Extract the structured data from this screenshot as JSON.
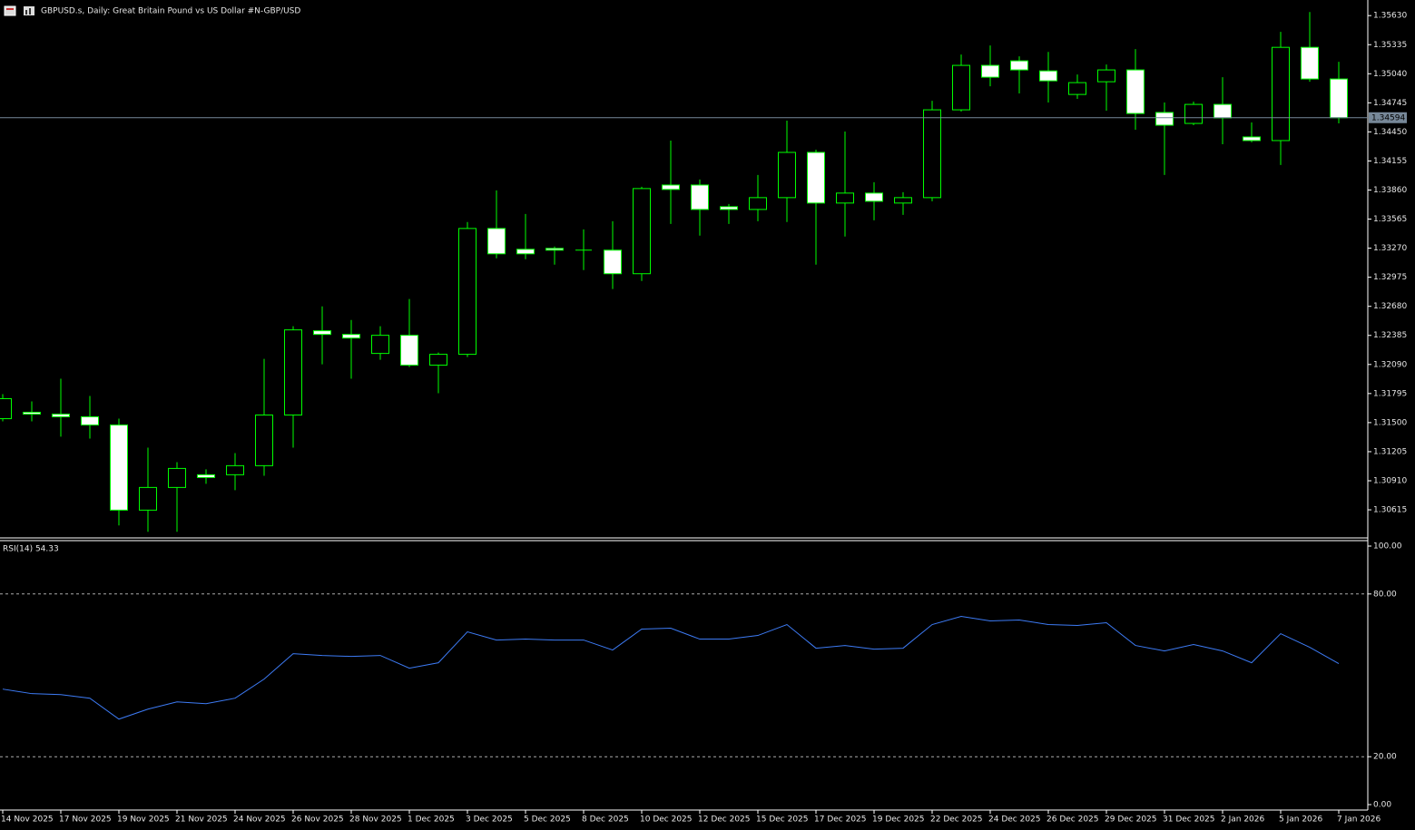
{
  "chart_data": [
    {
      "type": "candlestick",
      "title": "GBPUSD.s, Daily:  Great Britain Pound vs US Dollar #N-GBP/USD",
      "categories": [
        "14 Nov 2025",
        null,
        "17 Nov 2025",
        null,
        "19 Nov 2025",
        null,
        "21 Nov 2025",
        null,
        "24 Nov 2025",
        null,
        "26 Nov 2025",
        null,
        "28 Nov 2025",
        null,
        "1 Dec 2025",
        null,
        "3 Dec 2025",
        null,
        "5 Dec 2025",
        null,
        "8 Dec 2025",
        null,
        "10 Dec 2025",
        null,
        "12 Dec 2025",
        null,
        "15 Dec 2025",
        null,
        "17 Dec 2025",
        null,
        "19 Dec 2025",
        null,
        "22 Dec 2025",
        null,
        "24 Dec 2025",
        null,
        "26 Dec 2025",
        null,
        "29 Dec 2025",
        null,
        "31 Dec 2025",
        null,
        "2 Jan 2026",
        null,
        "5 Jan 2026",
        null,
        "7 Jan 2026"
      ],
      "open": [
        1.3154,
        1.31605,
        1.31586,
        1.31559,
        1.31476,
        1.30612,
        1.30842,
        1.30971,
        1.30971,
        1.31063,
        1.31577,
        1.32432,
        1.32395,
        1.32202,
        1.32386,
        1.32083,
        1.32193,
        1.3347,
        1.33259,
        1.33268,
        1.3325,
        1.3325,
        1.33011,
        1.33911,
        1.33911,
        1.33691,
        1.33663,
        1.33783,
        1.34242,
        1.33728,
        1.33829,
        1.33728,
        1.33783,
        1.34674,
        1.35125,
        1.35171,
        1.35069,
        1.3483,
        1.34959,
        1.35079,
        1.34647,
        1.34536,
        1.34729,
        1.34399,
        1.34362,
        1.35308,
        1.34987
      ],
      "high": [
        1.31789,
        1.31715,
        1.31945,
        1.3177,
        1.3154,
        1.31246,
        1.31099,
        1.31026,
        1.31191,
        1.32147,
        1.32478,
        1.3268,
        1.32542,
        1.32478,
        1.32754,
        1.32211,
        1.33535,
        1.33856,
        1.33617,
        1.33287,
        1.33461,
        1.33544,
        1.33893,
        1.34362,
        1.33967,
        1.33718,
        1.34013,
        1.34564,
        1.3427,
        1.34454,
        1.33939,
        1.33838,
        1.34766,
        1.35235,
        1.35327,
        1.35216,
        1.35262,
        1.35033,
        1.35134,
        1.3529,
        1.34748,
        1.34757,
        1.35005,
        1.34546,
        1.35465,
        1.35667,
        1.35161
      ],
      "low": [
        1.31513,
        1.31513,
        1.31357,
        1.31338,
        1.30456,
        1.30392,
        1.30392,
        1.30879,
        1.30814,
        1.30961,
        1.31246,
        1.32092,
        1.31945,
        1.32138,
        1.32064,
        1.31798,
        1.32165,
        1.33167,
        1.33158,
        1.33103,
        1.33048,
        1.32855,
        1.32937,
        1.33516,
        1.33397,
        1.33516,
        1.33544,
        1.33535,
        1.33103,
        1.33388,
        1.33553,
        1.33608,
        1.33746,
        1.34656,
        1.34913,
        1.3484,
        1.34748,
        1.34785,
        1.34665,
        1.34472,
        1.34013,
        1.34518,
        1.34325,
        1.34344,
        1.34114,
        1.34959,
        1.34536
      ],
      "close": [
        1.31743,
        1.31586,
        1.31559,
        1.31476,
        1.30612,
        1.30842,
        1.31035,
        1.30943,
        1.31063,
        1.31577,
        1.32441,
        1.32395,
        1.32358,
        1.32386,
        1.32083,
        1.32193,
        1.3347,
        1.33213,
        1.33213,
        1.3325,
        1.3325,
        1.33011,
        1.33875,
        1.33866,
        1.33663,
        1.33663,
        1.33783,
        1.34242,
        1.33728,
        1.33829,
        1.33746,
        1.33783,
        1.34674,
        1.35125,
        1.35005,
        1.35079,
        1.34968,
        1.3495,
        1.35079,
        1.34637,
        1.34518,
        1.34729,
        1.34592,
        1.34362,
        1.35308,
        1.34987,
        1.34594
      ],
      "up_color": "#000000",
      "down_color": "#ffffff",
      "wick_color": "#00ff00",
      "last_price": 1.34594,
      "last_price_color": "#778899",
      "ylim": [
        1.3033,
        1.3577
      ],
      "yticks": [
        {
          "value": 1.3563,
          "label": "1.35630"
        },
        {
          "value": 1.35335,
          "label": "1.35335"
        },
        {
          "value": 1.3504,
          "label": "1.35040"
        },
        {
          "value": 1.34745,
          "label": "1.34745"
        },
        {
          "value": 1.3445,
          "label": "1.34450"
        },
        {
          "value": 1.34155,
          "label": "1.34155"
        },
        {
          "value": 1.3386,
          "label": "1.33860"
        },
        {
          "value": 1.33565,
          "label": "1.33565"
        },
        {
          "value": 1.3327,
          "label": "1.33270"
        },
        {
          "value": 1.32975,
          "label": "1.32975"
        },
        {
          "value": 1.3268,
          "label": "1.32680"
        },
        {
          "value": 1.32385,
          "label": "1.32385"
        },
        {
          "value": 1.3209,
          "label": "1.32090"
        },
        {
          "value": 1.31795,
          "label": "1.31795"
        },
        {
          "value": 1.315,
          "label": "1.31500"
        },
        {
          "value": 1.31205,
          "label": "1.31205"
        },
        {
          "value": 1.3091,
          "label": "1.30910"
        },
        {
          "value": 1.30615,
          "label": "1.30615"
        }
      ]
    },
    {
      "type": "line",
      "title": "RSI(14) 54.33",
      "color": "#3d7bf5",
      "values": [
        44.92,
        43.25,
        42.91,
        41.57,
        33.86,
        37.55,
        40.23,
        39.56,
        41.57,
        48.61,
        58.0,
        57.33,
        56.99,
        57.33,
        52.63,
        54.64,
        66.04,
        63.02,
        63.36,
        63.02,
        63.02,
        59.34,
        67.05,
        67.38,
        63.36,
        63.36,
        64.7,
        68.72,
        60.01,
        61.01,
        59.67,
        60.01,
        68.72,
        71.74,
        70.06,
        70.4,
        68.72,
        68.39,
        69.39,
        61.01,
        59.0,
        61.35,
        59.0,
        54.64,
        65.37,
        60.34,
        54.33
      ],
      "ylim": [
        0,
        100
      ],
      "yticks": [
        {
          "value": 100,
          "label": "100.00"
        },
        {
          "value": 80,
          "label": "80.00"
        },
        {
          "value": 20,
          "label": "20.00"
        },
        {
          "value": 0,
          "label": "0.00"
        }
      ]
    }
  ]
}
